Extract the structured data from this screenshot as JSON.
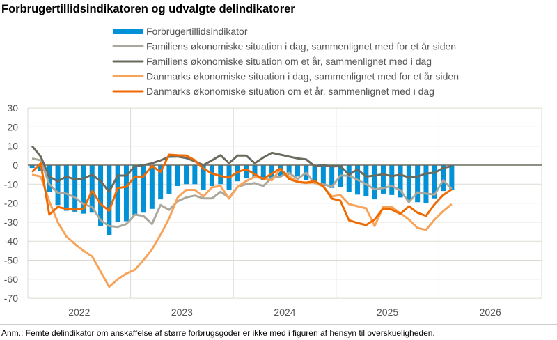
{
  "chart_data": {
    "type": "bar+line",
    "title": "Forbrugertillidsindikatoren og udvalgte delindikatorer",
    "note": "Anm.: Femte delindikator om anskaffelse af større forbrugsgoder er ikke med i figuren af hensyn til overskueligheden.",
    "x_start": "2022-01",
    "x_frequency": "monthly",
    "x_tick_labels": [
      "2022",
      "2023",
      "2024",
      "2025",
      "2026"
    ],
    "ylim": [
      -70,
      30
    ],
    "y_ticks": [
      30,
      20,
      10,
      0,
      -10,
      -20,
      -30,
      -40,
      -50,
      -60,
      -70
    ],
    "grid": true,
    "legend_position": "top",
    "series": [
      {
        "name": "Forbrugertillidsindikator",
        "kind": "bar",
        "color": "#0091d6",
        "values": [
          -1.5,
          -3,
          -14,
          -21,
          -24,
          -24.5,
          -25.5,
          -25,
          -32,
          -37,
          -30,
          -29.5,
          -26,
          -25,
          -23,
          -18,
          -15,
          -11,
          -10,
          -10,
          -13,
          -11,
          -10,
          -13,
          -8.5,
          -7,
          -7,
          -8,
          -8,
          -6,
          -5,
          -6,
          -8,
          -9,
          -11,
          -12,
          -11.5,
          -14,
          -15.5,
          -16.5,
          -18,
          -15,
          -15.7,
          -17,
          -18.7,
          -19.5,
          -20,
          -17.5,
          -13.6,
          -13
        ]
      },
      {
        "name": "Familiens økonomiske situation i dag, sammenlignet med for et år siden",
        "kind": "line",
        "color": "#aaa89c",
        "values": [
          3.5,
          2.5,
          -10,
          -14.5,
          -15,
          -17,
          -20.5,
          -22,
          -29,
          -32,
          -32.5,
          -31,
          -26,
          -26.7,
          -31,
          -21,
          -23.5,
          -19,
          -17,
          -16,
          -17.5,
          -17.5,
          -14,
          -17,
          -11.4,
          -10,
          -9.5,
          -11,
          -6.6,
          -6,
          -4,
          -7.3,
          -4,
          -9.5,
          -10,
          -11.4,
          -5.5,
          -5.5,
          -7.7,
          -10,
          -12.8,
          -12,
          -11,
          -13.2,
          -19.5,
          -14.3,
          -15,
          -15.5,
          -8,
          -12.5
        ]
      },
      {
        "name": "Familiens økonomiske situation om et år, sammenlignet med i dag",
        "kind": "line",
        "color": "#6b6a5f",
        "values": [
          10,
          4.5,
          -6,
          -8.5,
          -6,
          -7.5,
          -7,
          -5,
          -8.5,
          -14,
          -5.5,
          -5.5,
          -0.5,
          0,
          1,
          2.5,
          4.4,
          4.5,
          3.7,
          2,
          0,
          2.5,
          5.2,
          1,
          5,
          5,
          1,
          4,
          6.5,
          5.5,
          4.5,
          3.5,
          3,
          -0.5,
          0,
          -0.7,
          -0.5,
          -5,
          -2.3,
          -6,
          -5.5,
          -4.8,
          -5.8,
          -5,
          -6.5,
          -6,
          -4.4,
          -4,
          -1.5,
          -0.5
        ]
      },
      {
        "name": "Danmarks økonomiske situation i dag, sammenlignet med for et år siden",
        "kind": "line",
        "color": "#f7a45a",
        "values": [
          -5,
          -6,
          -19,
          -30,
          -37.5,
          -41.5,
          -45,
          -48,
          -56,
          -64,
          -60,
          -57,
          -55,
          -50,
          -44.3,
          -36.6,
          -28,
          -17,
          -13,
          -13,
          -16.5,
          -11.7,
          -11,
          -17.6,
          -11.4,
          -8.4,
          -6.2,
          -7,
          -8,
          -2.2,
          -5.9,
          -8.8,
          -9.5,
          -9,
          -11.4,
          -16.5,
          -15.7,
          -20.5,
          -21.6,
          -22.7,
          -32,
          -22,
          -22,
          -25.3,
          -28.6,
          -33,
          -34,
          -28.6,
          -24.2,
          -20.5
        ]
      },
      {
        "name": "Danmarks økonomiske situation om et år, sammenlignet med i dag",
        "kind": "line",
        "color": "#ef6a00",
        "values": [
          -3.6,
          1,
          -26,
          -22,
          -23,
          -23.4,
          -23,
          -13.4,
          -20.5,
          -24,
          -12,
          -11.4,
          -6,
          -6,
          -0.4,
          -3.6,
          5.5,
          5.2,
          5,
          2.6,
          -1.8,
          -4.4,
          -5.7,
          -6.6,
          -3.6,
          -2.2,
          -4.8,
          -7.3,
          -4.4,
          -1.8,
          -7.3,
          -8.8,
          -9.2,
          -8.4,
          -11,
          -17.6,
          -18.7,
          -29,
          -30.4,
          -31.5,
          -28.6,
          -22.7,
          -23.4,
          -25.6,
          -21.6,
          -25,
          -26.7,
          -20.5,
          -15.7,
          -12.8
        ]
      }
    ]
  }
}
